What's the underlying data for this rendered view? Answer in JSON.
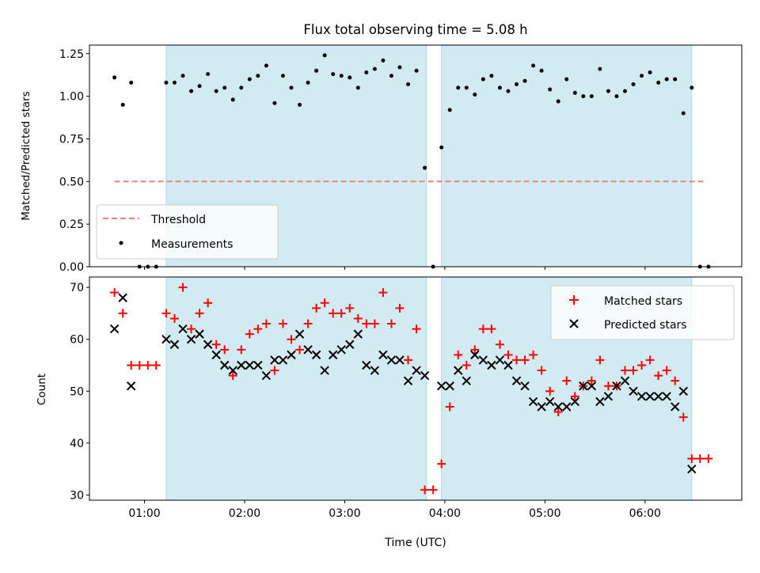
{
  "chart_data": [
    {
      "type": "scatter",
      "title": "Flux total observing time = 5.08 h",
      "ylabel": "Matched/Predicted stars",
      "ylim": [
        0,
        1.3
      ],
      "xlim": [
        "00:27",
        "06:58"
      ],
      "yticks": [
        0.0,
        0.25,
        0.5,
        0.75,
        1.0,
        1.25
      ],
      "ytick_labels": [
        "0.00",
        "0.25",
        "0.50",
        "0.75",
        "1.00",
        "1.25"
      ],
      "grid": false,
      "legend_position": "lower-left",
      "shaded_intervals": [
        [
          "01:13",
          "03:49"
        ],
        [
          "03:58",
          "06:28"
        ]
      ],
      "shade_color": "#add8e6",
      "series": [
        {
          "name": "Threshold",
          "kind": "line",
          "style": "dashed",
          "color": "#f08080",
          "x": [
            "00:42",
            "06:35"
          ],
          "y": [
            0.5,
            0.5
          ]
        },
        {
          "name": "Measurements",
          "kind": "scatter",
          "color": "#000000",
          "points": [
            [
              "00:42",
              1.11
            ],
            [
              "00:47",
              0.95
            ],
            [
              "00:52",
              1.08
            ],
            [
              "00:57",
              0.0
            ],
            [
              "01:02",
              0.0
            ],
            [
              "01:07",
              0.0
            ],
            [
              "01:13",
              1.08
            ],
            [
              "01:18",
              1.08
            ],
            [
              "01:23",
              1.12
            ],
            [
              "01:28",
              1.03
            ],
            [
              "01:33",
              1.06
            ],
            [
              "01:38",
              1.13
            ],
            [
              "01:43",
              1.03
            ],
            [
              "01:48",
              1.05
            ],
            [
              "01:53",
              0.98
            ],
            [
              "01:58",
              1.05
            ],
            [
              "02:03",
              1.1
            ],
            [
              "02:08",
              1.12
            ],
            [
              "02:13",
              1.18
            ],
            [
              "02:18",
              0.96
            ],
            [
              "02:23",
              1.12
            ],
            [
              "02:28",
              1.05
            ],
            [
              "02:33",
              0.95
            ],
            [
              "02:38",
              1.08
            ],
            [
              "02:43",
              1.15
            ],
            [
              "02:48",
              1.24
            ],
            [
              "02:53",
              1.13
            ],
            [
              "02:58",
              1.12
            ],
            [
              "03:03",
              1.11
            ],
            [
              "03:08",
              1.05
            ],
            [
              "03:13",
              1.14
            ],
            [
              "03:18",
              1.16
            ],
            [
              "03:23",
              1.21
            ],
            [
              "03:28",
              1.12
            ],
            [
              "03:33",
              1.17
            ],
            [
              "03:38",
              1.07
            ],
            [
              "03:43",
              1.15
            ],
            [
              "03:48",
              0.58
            ],
            [
              "03:53",
              0.0
            ],
            [
              "03:58",
              0.7
            ],
            [
              "04:03",
              0.92
            ],
            [
              "04:08",
              1.05
            ],
            [
              "04:13",
              1.05
            ],
            [
              "04:18",
              1.01
            ],
            [
              "04:23",
              1.1
            ],
            [
              "04:28",
              1.12
            ],
            [
              "04:33",
              1.05
            ],
            [
              "04:38",
              1.03
            ],
            [
              "04:43",
              1.07
            ],
            [
              "04:48",
              1.09
            ],
            [
              "04:53",
              1.18
            ],
            [
              "04:58",
              1.15
            ],
            [
              "05:03",
              1.04
            ],
            [
              "05:08",
              0.97
            ],
            [
              "05:13",
              1.1
            ],
            [
              "05:18",
              1.02
            ],
            [
              "05:23",
              1.0
            ],
            [
              "05:28",
              1.0
            ],
            [
              "05:33",
              1.16
            ],
            [
              "05:38",
              1.03
            ],
            [
              "05:43",
              1.0
            ],
            [
              "05:48",
              1.03
            ],
            [
              "05:53",
              1.07
            ],
            [
              "05:58",
              1.12
            ],
            [
              "06:03",
              1.14
            ],
            [
              "06:08",
              1.08
            ],
            [
              "06:13",
              1.1
            ],
            [
              "06:18",
              1.1
            ],
            [
              "06:23",
              0.9
            ],
            [
              "06:28",
              1.05
            ],
            [
              "06:33",
              0.0
            ],
            [
              "06:38",
              0.0
            ]
          ]
        }
      ]
    },
    {
      "type": "scatter",
      "xlabel": "Time (UTC)",
      "ylabel": "Count",
      "ylim": [
        29,
        72
      ],
      "xlim": [
        "00:27",
        "06:58"
      ],
      "yticks": [
        30,
        40,
        50,
        60,
        70
      ],
      "ytick_labels": [
        "30",
        "40",
        "50",
        "60",
        "70"
      ],
      "xticks": [
        "01:00",
        "02:00",
        "03:00",
        "04:00",
        "05:00",
        "06:00"
      ],
      "xtick_labels": [
        "01:00",
        "02:00",
        "03:00",
        "04:00",
        "05:00",
        "06:00"
      ],
      "grid": false,
      "legend_position": "upper-right",
      "shaded_intervals": [
        [
          "01:13",
          "03:49"
        ],
        [
          "03:58",
          "06:28"
        ]
      ],
      "shade_color": "#add8e6",
      "series": [
        {
          "name": "Matched stars",
          "kind": "plus",
          "color": "#ff0000",
          "points": [
            [
              "00:42",
              69
            ],
            [
              "00:47",
              65
            ],
            [
              "00:52",
              55
            ],
            [
              "00:57",
              55
            ],
            [
              "01:02",
              55
            ],
            [
              "01:07",
              55
            ],
            [
              "01:13",
              65
            ],
            [
              "01:18",
              64
            ],
            [
              "01:23",
              70
            ],
            [
              "01:28",
              62
            ],
            [
              "01:33",
              65
            ],
            [
              "01:38",
              67
            ],
            [
              "01:43",
              59
            ],
            [
              "01:48",
              58
            ],
            [
              "01:53",
              53
            ],
            [
              "01:58",
              58
            ],
            [
              "02:03",
              61
            ],
            [
              "02:08",
              62
            ],
            [
              "02:13",
              63
            ],
            [
              "02:18",
              54
            ],
            [
              "02:23",
              63
            ],
            [
              "02:28",
              60
            ],
            [
              "02:33",
              58
            ],
            [
              "02:38",
              63
            ],
            [
              "02:43",
              66
            ],
            [
              "02:48",
              67
            ],
            [
              "02:53",
              65
            ],
            [
              "02:58",
              65
            ],
            [
              "03:03",
              66
            ],
            [
              "03:08",
              64
            ],
            [
              "03:13",
              63
            ],
            [
              "03:18",
              63
            ],
            [
              "03:23",
              69
            ],
            [
              "03:28",
              63
            ],
            [
              "03:33",
              66
            ],
            [
              "03:38",
              56
            ],
            [
              "03:43",
              62
            ],
            [
              "03:48",
              31
            ],
            [
              "03:53",
              31
            ],
            [
              "03:58",
              36
            ],
            [
              "04:03",
              47
            ],
            [
              "04:08",
              57
            ],
            [
              "04:13",
              55
            ],
            [
              "04:18",
              58
            ],
            [
              "04:23",
              62
            ],
            [
              "04:28",
              62
            ],
            [
              "04:33",
              59
            ],
            [
              "04:38",
              57
            ],
            [
              "04:43",
              56
            ],
            [
              "04:48",
              56
            ],
            [
              "04:53",
              57
            ],
            [
              "04:58",
              54
            ],
            [
              "05:03",
              50
            ],
            [
              "05:08",
              46
            ],
            [
              "05:13",
              52
            ],
            [
              "05:18",
              49
            ],
            [
              "05:23",
              51
            ],
            [
              "05:28",
              52
            ],
            [
              "05:33",
              56
            ],
            [
              "05:38",
              51
            ],
            [
              "05:43",
              51
            ],
            [
              "05:48",
              54
            ],
            [
              "05:53",
              54
            ],
            [
              "05:58",
              55
            ],
            [
              "06:03",
              56
            ],
            [
              "06:08",
              53
            ],
            [
              "06:13",
              54
            ],
            [
              "06:18",
              52
            ],
            [
              "06:23",
              45
            ],
            [
              "06:28",
              37
            ],
            [
              "06:33",
              37
            ],
            [
              "06:38",
              37
            ]
          ]
        },
        {
          "name": "Predicted stars",
          "kind": "x",
          "color": "#000000",
          "points": [
            [
              "00:42",
              62
            ],
            [
              "00:47",
              68
            ],
            [
              "00:52",
              51
            ],
            [
              "01:13",
              60
            ],
            [
              "01:18",
              59
            ],
            [
              "01:23",
              62
            ],
            [
              "01:28",
              60
            ],
            [
              "01:33",
              61
            ],
            [
              "01:38",
              59
            ],
            [
              "01:43",
              57
            ],
            [
              "01:48",
              55
            ],
            [
              "01:53",
              54
            ],
            [
              "01:58",
              55
            ],
            [
              "02:03",
              55
            ],
            [
              "02:08",
              55
            ],
            [
              "02:13",
              53
            ],
            [
              "02:18",
              56
            ],
            [
              "02:23",
              56
            ],
            [
              "02:28",
              57
            ],
            [
              "02:33",
              61
            ],
            [
              "02:38",
              58
            ],
            [
              "02:43",
              57
            ],
            [
              "02:48",
              54
            ],
            [
              "02:53",
              57
            ],
            [
              "02:58",
              58
            ],
            [
              "03:03",
              59
            ],
            [
              "03:08",
              61
            ],
            [
              "03:13",
              55
            ],
            [
              "03:18",
              54
            ],
            [
              "03:23",
              57
            ],
            [
              "03:28",
              56
            ],
            [
              "03:33",
              56
            ],
            [
              "03:38",
              52
            ],
            [
              "03:43",
              54
            ],
            [
              "03:48",
              53
            ],
            [
              "03:58",
              51
            ],
            [
              "04:03",
              51
            ],
            [
              "04:08",
              54
            ],
            [
              "04:13",
              52
            ],
            [
              "04:18",
              57
            ],
            [
              "04:23",
              56
            ],
            [
              "04:28",
              55
            ],
            [
              "04:33",
              56
            ],
            [
              "04:38",
              55
            ],
            [
              "04:43",
              52
            ],
            [
              "04:48",
              51
            ],
            [
              "04:53",
              48
            ],
            [
              "04:58",
              47
            ],
            [
              "05:03",
              48
            ],
            [
              "05:08",
              47
            ],
            [
              "05:13",
              47
            ],
            [
              "05:18",
              48
            ],
            [
              "05:23",
              51
            ],
            [
              "05:28",
              51
            ],
            [
              "05:33",
              48
            ],
            [
              "05:38",
              49
            ],
            [
              "05:43",
              51
            ],
            [
              "05:48",
              52
            ],
            [
              "05:53",
              50
            ],
            [
              "05:58",
              49
            ],
            [
              "06:03",
              49
            ],
            [
              "06:08",
              49
            ],
            [
              "06:13",
              49
            ],
            [
              "06:18",
              47
            ],
            [
              "06:23",
              50
            ],
            [
              "06:28",
              35
            ]
          ]
        }
      ]
    }
  ]
}
